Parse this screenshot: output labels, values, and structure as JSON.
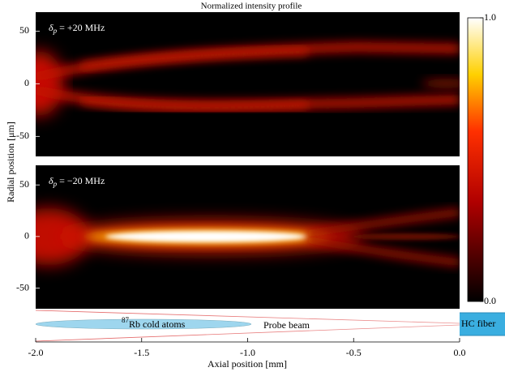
{
  "title": "Normalized intensity profile",
  "ylabel": "Radial position [μm]",
  "xlabel": "Axial position [mm]",
  "xlim": [
    -2,
    0
  ],
  "xticks": [
    {
      "value": -2,
      "label": "-2.0"
    },
    {
      "value": -1.5,
      "label": "-1.5"
    },
    {
      "value": -1,
      "label": "-1.0"
    },
    {
      "value": -0.5,
      "label": "-0.5"
    },
    {
      "value": 0,
      "label": "0.0"
    }
  ],
  "chart_data": [
    {
      "type": "heatmap",
      "annotation": {
        "symbol": "δ",
        "subscript": "p",
        "rest": " = +20 MHz"
      },
      "ylim": [
        -69,
        68
      ],
      "yticks": [
        50,
        0,
        -50
      ]
    },
    {
      "type": "heatmap",
      "annotation": {
        "symbol": "δ",
        "subscript": "p",
        "rest": " = −20 MHz"
      },
      "ylim": [
        -70,
        69
      ],
      "yticks": [
        50,
        0,
        -50
      ]
    }
  ],
  "colorbar": {
    "clim": [
      0,
      1
    ],
    "ticks": [
      {
        "value": 0,
        "label": "0.0"
      },
      {
        "value": 1,
        "label": "1.0"
      }
    ]
  },
  "diagram": {
    "atoms": {
      "superscript": "87",
      "text": "Rb cold atoms"
    },
    "probe": "Probe beam",
    "fiber": "HC fiber"
  }
}
